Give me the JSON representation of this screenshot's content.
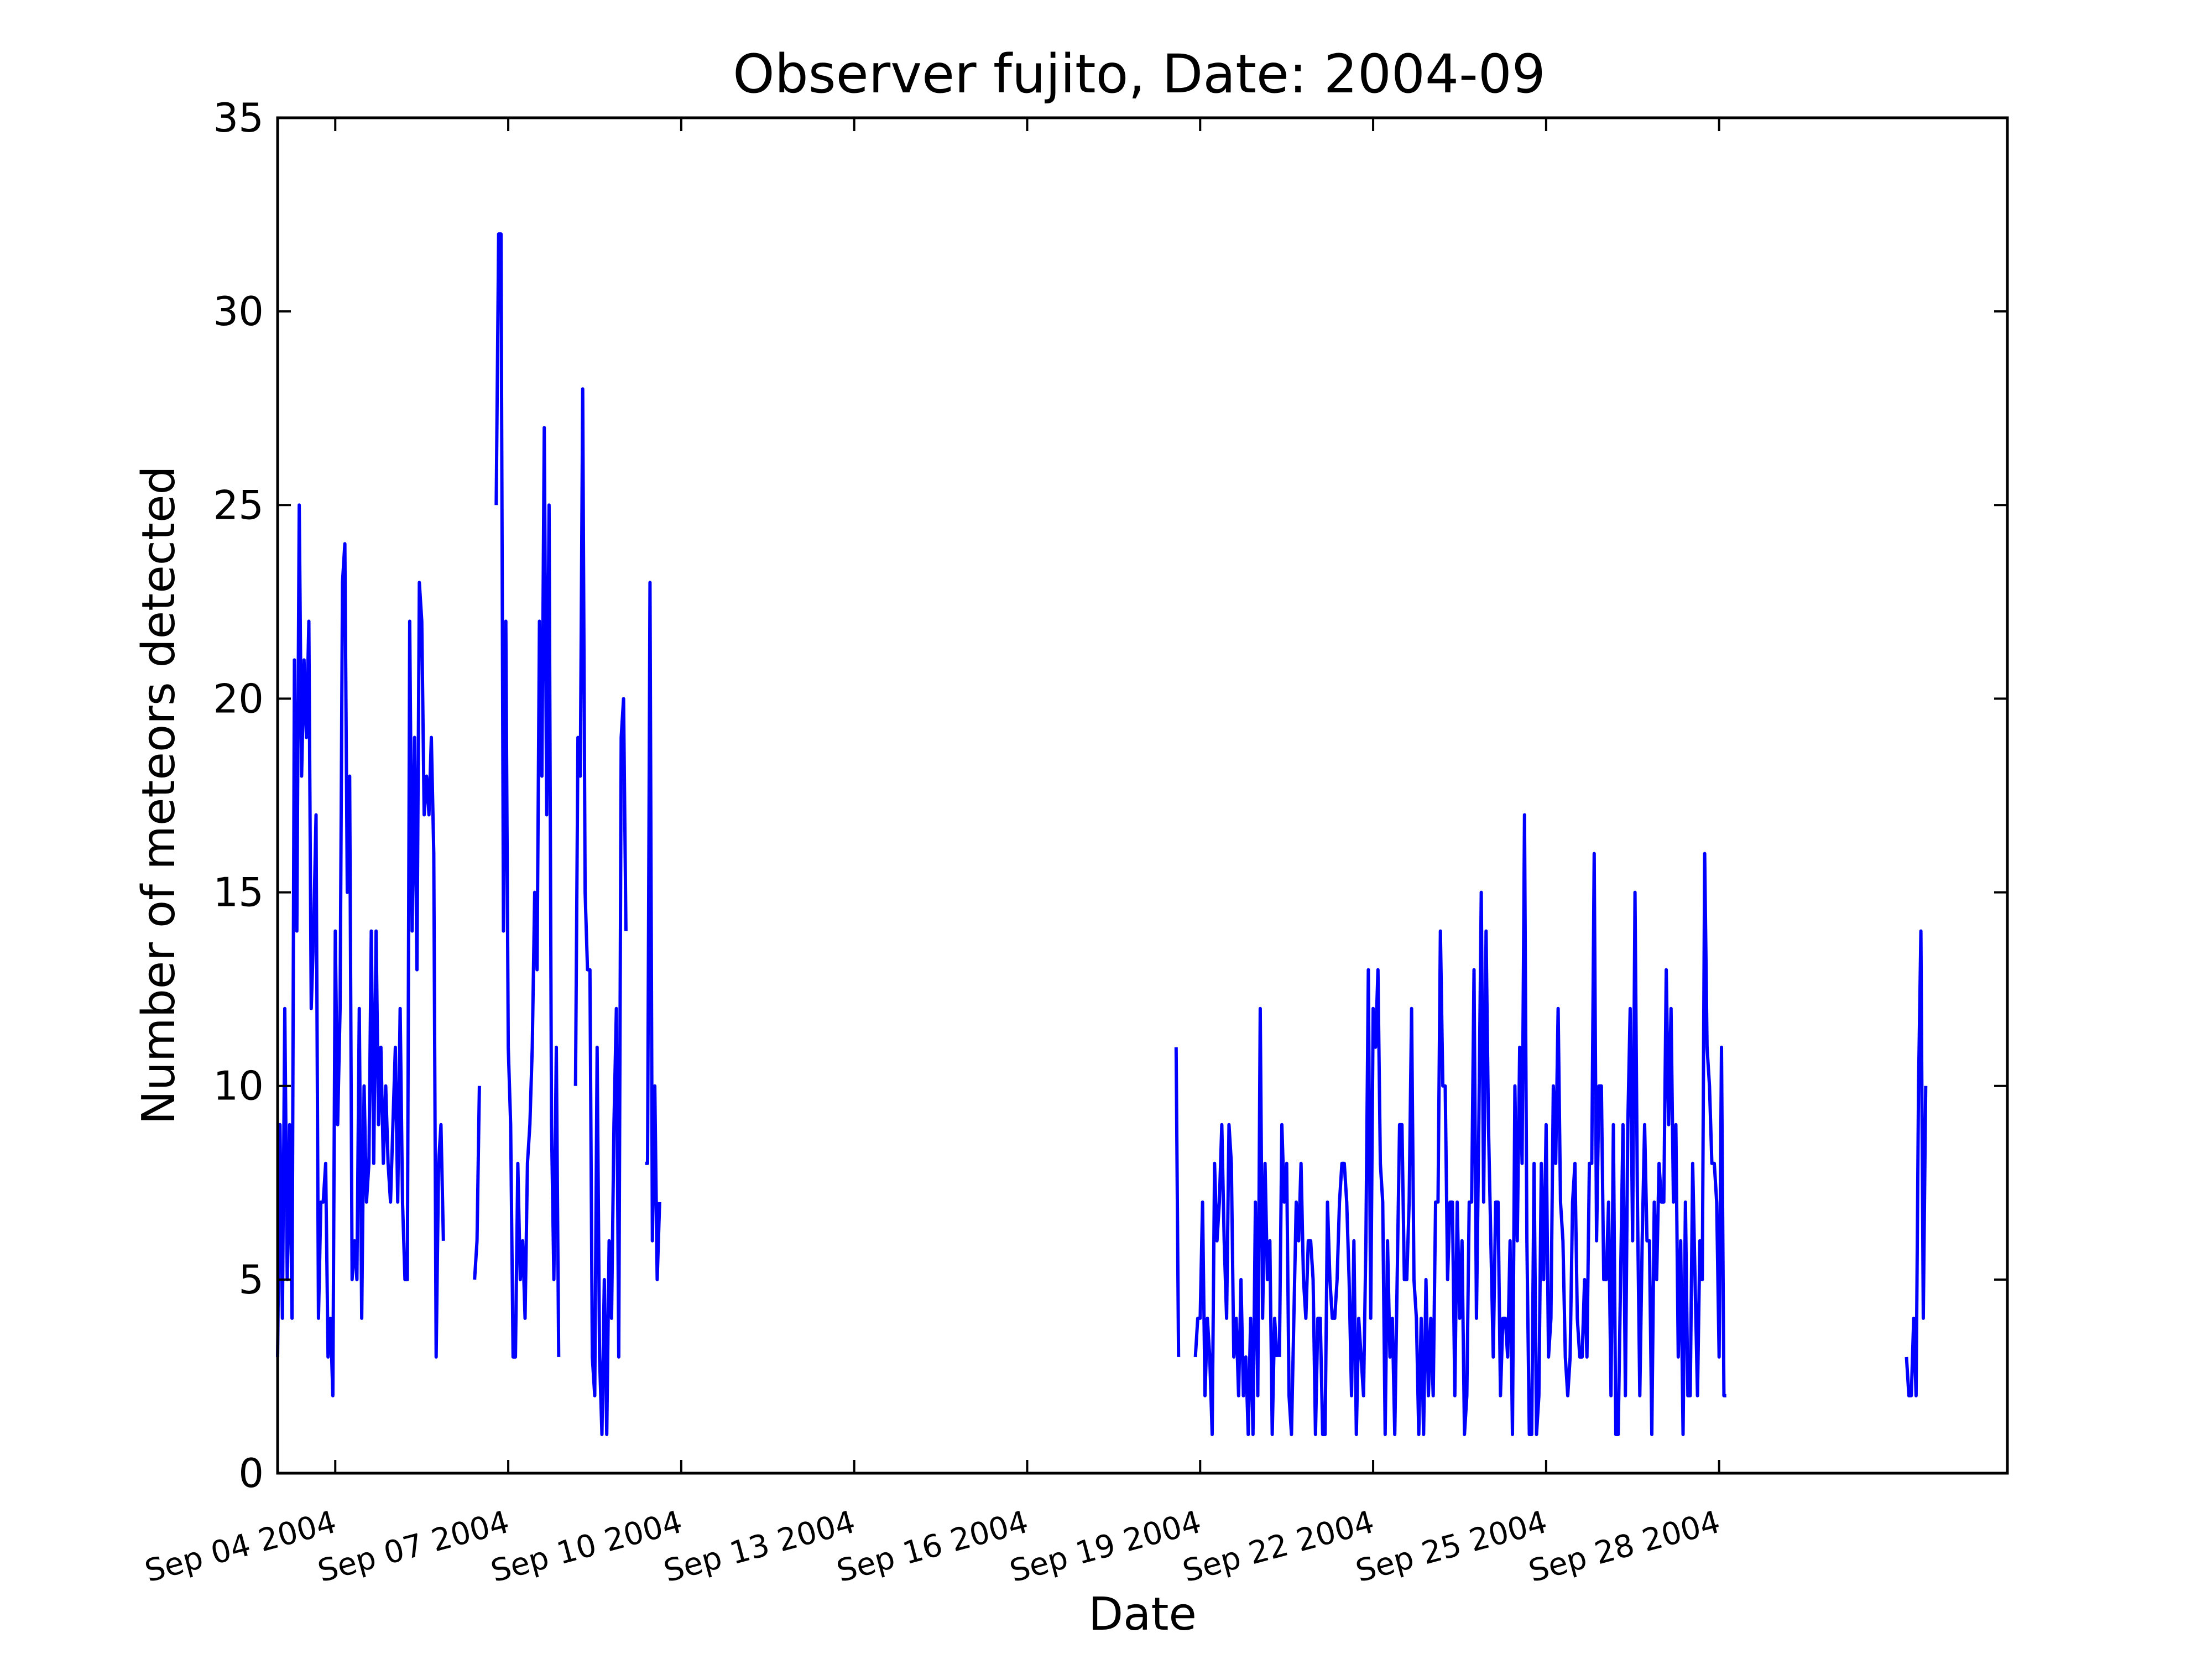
{
  "chart_data": {
    "type": "line",
    "title": "Observer fujito, Date: 2004-09",
    "xlabel": "Date",
    "ylabel": "Number of meteors detected",
    "xlim": [
      "2004-09-03",
      "2004-10-03"
    ],
    "ylim": [
      0,
      35
    ],
    "yticks": [
      0,
      5,
      10,
      15,
      20,
      25,
      30,
      35
    ],
    "yticklabels": [
      "0",
      "5",
      "10",
      "15",
      "20",
      "25",
      "30",
      "35"
    ],
    "xticks": [
      "2004-09-04",
      "2004-09-07",
      "2004-09-10",
      "2004-09-13",
      "2004-09-16",
      "2004-09-19",
      "2004-09-22",
      "2004-09-25",
      "2004-09-28"
    ],
    "xticklabels": [
      "Sep 04 2004",
      "Sep 07 2004",
      "Sep 10 2004",
      "Sep 13 2004",
      "Sep 16 2004",
      "Sep 19 2004",
      "Sep 22 2004",
      "Sep 25 2004",
      "Sep 28 2004"
    ],
    "grid": false,
    "series": [
      {
        "color": "#0000ff",
        "segments": [
          {
            "start": "2004-09-03T00:00",
            "step_hours": 1,
            "values": [
              3,
              9,
              4,
              12,
              5,
              9,
              4,
              21,
              14,
              25,
              18,
              21,
              19,
              22,
              12,
              14,
              17,
              4,
              7,
              7,
              8,
              3,
              4,
              2,
              14,
              9,
              12,
              23,
              24,
              15,
              18,
              5,
              6,
              5,
              12,
              4,
              10,
              7,
              8,
              14,
              8,
              14,
              9,
              11,
              8,
              10,
              8,
              7,
              9,
              11,
              7,
              12,
              7,
              5,
              5,
              22,
              14,
              19,
              13,
              23,
              22,
              17,
              18,
              17,
              19,
              16,
              3,
              8,
              9,
              6
            ]
          },
          {
            "start": "2004-09-06T10:00",
            "step_hours": 1,
            "values": [
              5,
              6,
              10
            ]
          },
          {
            "start": "2004-09-06T19:00",
            "step_hours": 1,
            "values": [
              25,
              32,
              32,
              14,
              22,
              11,
              9,
              3,
              3,
              8,
              5,
              6,
              4,
              8,
              9,
              11,
              15,
              13,
              22,
              18,
              27,
              17,
              25,
              9,
              5,
              11,
              3
            ]
          },
          {
            "start": "2004-09-08T04:00",
            "step_hours": 1,
            "values": [
              10,
              19,
              18,
              28,
              15,
              13,
              13,
              3,
              2,
              11,
              3,
              1,
              5,
              1,
              6,
              4,
              9,
              12,
              3,
              19,
              20,
              14
            ]
          },
          {
            "start": "2004-09-09T09:00",
            "step_hours": 1,
            "values": [
              8,
              8,
              23,
              6,
              10,
              5,
              7
            ]
          },
          {
            "start": "2004-09-18T14:00",
            "step_hours": 1,
            "values": [
              11,
              3
            ]
          },
          {
            "start": "2004-09-18T22:00",
            "step_hours": 1,
            "values": [
              3,
              4,
              4,
              7,
              2,
              4,
              3,
              1,
              8,
              6,
              7,
              9,
              6,
              4,
              9,
              8,
              3,
              4,
              2,
              5,
              2,
              3,
              1,
              4,
              1,
              7,
              2,
              12,
              4,
              8,
              5,
              6,
              1,
              4,
              3
            ]
          },
          {
            "start": "2004-09-20T09:00",
            "step_hours": 1,
            "values": [
              3,
              9,
              7,
              8,
              2,
              1,
              4,
              7,
              6,
              8,
              5,
              4,
              6,
              6,
              5,
              1,
              4,
              4,
              1,
              1,
              7,
              5,
              4,
              4,
              5,
              7,
              8,
              8,
              7,
              5,
              2,
              6,
              1,
              4,
              3,
              2,
              6,
              13,
              4,
              12,
              11,
              13,
              8,
              7,
              1,
              6,
              3,
              4,
              1,
              5,
              9,
              9,
              5,
              5,
              7,
              12,
              5,
              4,
              1,
              4,
              1,
              5,
              2,
              4,
              2,
              7,
              7,
              14,
              10,
              10,
              5,
              7,
              7,
              2,
              7,
              4,
              6,
              1,
              2,
              7,
              7,
              13,
              4,
              9,
              15,
              7,
              14,
              9,
              6,
              3,
              7,
              7,
              2,
              4,
              4,
              3,
              6,
              1,
              10,
              6,
              11,
              8,
              17,
              6,
              1,
              1,
              8,
              1,
              2,
              8,
              5,
              9,
              3,
              4,
              10,
              8,
              12,
              7,
              6,
              3,
              2,
              3,
              7,
              8,
              4,
              3,
              3,
              5,
              3,
              8,
              8,
              16,
              6,
              10,
              10,
              5,
              5,
              7,
              2,
              9,
              1,
              1,
              5,
              9,
              2,
              9,
              12,
              6,
              15,
              7,
              2,
              6,
              9,
              6,
              6,
              1,
              7,
              5,
              8,
              7,
              7,
              13,
              9,
              12,
              7,
              9,
              3,
              6,
              1,
              7,
              2,
              2,
              8,
              5,
              2,
              6,
              5,
              16,
              11,
              10,
              8,
              8,
              7,
              3,
              11,
              2,
              2
            ]
          },
          {
            "start": "2004-10-01T06:00",
            "step_hours": 1,
            "values": [
              3,
              2,
              2,
              4,
              2,
              10,
              14,
              4,
              10
            ]
          }
        ]
      }
    ]
  }
}
